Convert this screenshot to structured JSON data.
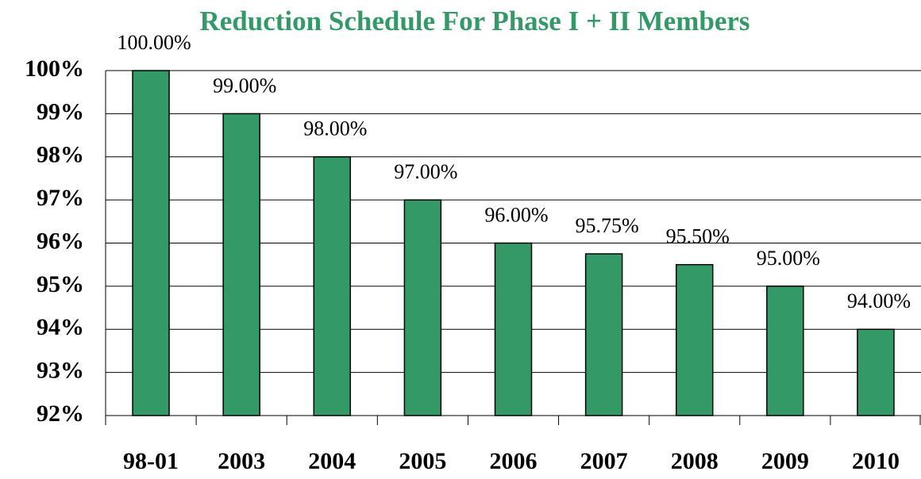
{
  "chart_data": {
    "type": "bar",
    "title": "Reduction Schedule For Phase I + II Members",
    "categories": [
      "98-01",
      "2003",
      "2004",
      "2005",
      "2006",
      "2007",
      "2008",
      "2009",
      "2010"
    ],
    "values": [
      100,
      99,
      98,
      97,
      96,
      95.75,
      95.5,
      95,
      94
    ],
    "value_labels": [
      "100.00%",
      "99.00%",
      "98.00%",
      "97.00%",
      "96.00%",
      "95.75%",
      "95.50%",
      "95.00%",
      "94.00%"
    ],
    "color": "#339966",
    "ylim": [
      92,
      100
    ],
    "yticks": [
      {
        "value": 92,
        "label": "92%"
      },
      {
        "value": 93,
        "label": "93%"
      },
      {
        "value": 94,
        "label": "94%"
      },
      {
        "value": 95,
        "label": "95%"
      },
      {
        "value": 96,
        "label": "96%"
      },
      {
        "value": 97,
        "label": "97%"
      },
      {
        "value": 98,
        "label": "98%"
      },
      {
        "value": 99,
        "label": "99%"
      },
      {
        "value": 100,
        "label": "100%"
      }
    ],
    "grid": true
  }
}
